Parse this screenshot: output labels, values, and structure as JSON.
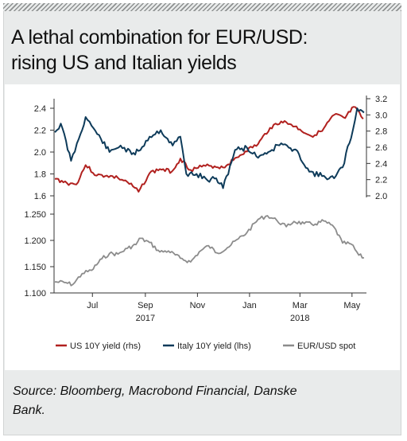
{
  "title": {
    "line1": "A lethal combination for EUR/USD:",
    "line2": "rising US and Italian yields"
  },
  "source": {
    "line1": "Source: Bloomberg, Macrobond Financial, Danske",
    "line2": "Bank."
  },
  "chart_data": [
    {
      "type": "line",
      "title": "",
      "x_range": [
        "2017-06-01",
        "2018-05-31"
      ],
      "x_ticks": [
        "Jul",
        "Sep",
        "Nov",
        "Jan",
        "Mar",
        "May"
      ],
      "x_years": [
        "2017",
        "2018"
      ],
      "left_axis": {
        "ticks": [
          "2.4",
          "2.2",
          "2.0",
          "1.8",
          "1.6"
        ],
        "ylim": [
          1.6,
          2.5
        ]
      },
      "right_axis": {
        "ticks": [
          "3.2",
          "3.0",
          "2.8",
          "2.6",
          "2.4",
          "2.2",
          "2.0"
        ],
        "ylim": [
          2.0,
          3.2
        ]
      },
      "series": [
        {
          "name": "US 10Y yield (rhs)",
          "axis": "right",
          "color": "#b1211f",
          "points": [
            [
              "2017-06-01",
              2.21
            ],
            [
              "2017-06-15",
              2.16
            ],
            [
              "2017-06-26",
              2.14
            ],
            [
              "2017-07-07",
              2.38
            ],
            [
              "2017-07-20",
              2.25
            ],
            [
              "2017-08-01",
              2.25
            ],
            [
              "2017-08-14",
              2.22
            ],
            [
              "2017-08-25",
              2.17
            ],
            [
              "2017-09-07",
              2.05
            ],
            [
              "2017-09-20",
              2.28
            ],
            [
              "2017-10-02",
              2.33
            ],
            [
              "2017-10-16",
              2.3
            ],
            [
              "2017-10-26",
              2.46
            ],
            [
              "2017-11-07",
              2.32
            ],
            [
              "2017-11-20",
              2.36
            ],
            [
              "2017-12-01",
              2.37
            ],
            [
              "2017-12-15",
              2.35
            ],
            [
              "2017-12-27",
              2.44
            ],
            [
              "2018-01-10",
              2.55
            ],
            [
              "2018-01-25",
              2.64
            ],
            [
              "2018-02-08",
              2.84
            ],
            [
              "2018-02-21",
              2.92
            ],
            [
              "2018-03-05",
              2.88
            ],
            [
              "2018-03-15",
              2.82
            ],
            [
              "2018-03-28",
              2.74
            ],
            [
              "2018-04-10",
              2.8
            ],
            [
              "2018-04-24",
              3.0
            ],
            [
              "2018-05-07",
              2.96
            ],
            [
              "2018-05-17",
              3.1
            ],
            [
              "2018-05-28",
              2.95
            ]
          ]
        },
        {
          "name": "Italy 10Y yield (lhs)",
          "axis": "left",
          "color": "#0e3b5a",
          "points": [
            [
              "2017-06-01",
              2.18
            ],
            [
              "2017-06-08",
              2.26
            ],
            [
              "2017-06-20",
              1.92
            ],
            [
              "2017-06-29",
              2.12
            ],
            [
              "2017-07-07",
              2.32
            ],
            [
              "2017-07-14",
              2.24
            ],
            [
              "2017-07-25",
              2.12
            ],
            [
              "2017-08-04",
              2.0
            ],
            [
              "2017-08-17",
              2.06
            ],
            [
              "2017-08-30",
              1.98
            ],
            [
              "2017-09-07",
              2.01
            ],
            [
              "2017-09-20",
              2.14
            ],
            [
              "2017-10-03",
              2.2
            ],
            [
              "2017-10-17",
              2.06
            ],
            [
              "2017-10-26",
              2.14
            ],
            [
              "2017-11-02",
              1.8
            ],
            [
              "2017-11-14",
              1.8
            ],
            [
              "2017-11-27",
              1.74
            ],
            [
              "2017-12-07",
              1.76
            ],
            [
              "2017-12-15",
              1.67
            ],
            [
              "2017-12-29",
              2.02
            ],
            [
              "2018-01-12",
              2.04
            ],
            [
              "2018-01-23",
              1.96
            ],
            [
              "2018-02-06",
              2.0
            ],
            [
              "2018-02-21",
              2.08
            ],
            [
              "2018-03-02",
              2.04
            ],
            [
              "2018-03-14",
              1.98
            ],
            [
              "2018-03-26",
              1.82
            ],
            [
              "2018-04-10",
              1.78
            ],
            [
              "2018-04-24",
              1.76
            ],
            [
              "2018-05-04",
              1.86
            ],
            [
              "2018-05-16",
              2.2
            ],
            [
              "2018-05-21",
              2.4
            ],
            [
              "2018-05-29",
              2.36
            ]
          ]
        }
      ]
    },
    {
      "type": "line",
      "title": "",
      "y_ticks": [
        "1.250",
        "1.200",
        "1.150",
        "1.100"
      ],
      "ylim": [
        1.1,
        1.26
      ],
      "series": [
        {
          "name": "EUR/USD spot",
          "color": "#8c8c8c",
          "points": [
            [
              "2017-06-01",
              1.121
            ],
            [
              "2017-06-12",
              1.12
            ],
            [
              "2017-06-22",
              1.116
            ],
            [
              "2017-07-03",
              1.137
            ],
            [
              "2017-07-14",
              1.143
            ],
            [
              "2017-07-26",
              1.165
            ],
            [
              "2017-08-04",
              1.175
            ],
            [
              "2017-08-14",
              1.174
            ],
            [
              "2017-08-25",
              1.185
            ],
            [
              "2017-09-04",
              1.192
            ],
            [
              "2017-09-08",
              1.204
            ],
            [
              "2017-09-20",
              1.196
            ],
            [
              "2017-10-02",
              1.178
            ],
            [
              "2017-10-12",
              1.18
            ],
            [
              "2017-10-26",
              1.166
            ],
            [
              "2017-11-07",
              1.159
            ],
            [
              "2017-11-17",
              1.178
            ],
            [
              "2017-11-28",
              1.19
            ],
            [
              "2017-12-08",
              1.176
            ],
            [
              "2017-12-20",
              1.186
            ],
            [
              "2018-01-02",
              1.203
            ],
            [
              "2018-01-12",
              1.215
            ],
            [
              "2018-01-25",
              1.24
            ],
            [
              "2018-02-05",
              1.247
            ],
            [
              "2018-02-16",
              1.238
            ],
            [
              "2018-02-27",
              1.226
            ],
            [
              "2018-03-08",
              1.236
            ],
            [
              "2018-03-20",
              1.232
            ],
            [
              "2018-04-02",
              1.231
            ],
            [
              "2018-04-12",
              1.237
            ],
            [
              "2018-04-24",
              1.225
            ],
            [
              "2018-05-04",
              1.195
            ],
            [
              "2018-05-14",
              1.193
            ],
            [
              "2018-05-23",
              1.172
            ],
            [
              "2018-05-29",
              1.167
            ]
          ]
        }
      ]
    }
  ],
  "legend": [
    {
      "label": "US 10Y yield (rhs)",
      "color": "#b1211f"
    },
    {
      "label": "Italy 10Y yield (lhs)",
      "color": "#0e3b5a"
    },
    {
      "label": "EUR/USD spot",
      "color": "#8c8c8c"
    }
  ]
}
